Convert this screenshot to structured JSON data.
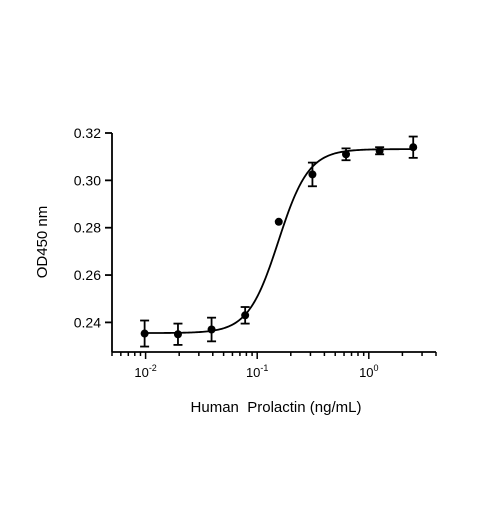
{
  "chart_data": {
    "type": "scatter",
    "title": "",
    "xlabel": "Human  Prolactin (ng/mL)",
    "ylabel": "OD450 nm",
    "x_scale": "log",
    "xlim": [
      0.005,
      4
    ],
    "ylim": [
      0.2275,
      0.32
    ],
    "x_ticks": [
      {
        "base": "10",
        "exp": "-2"
      },
      {
        "base": "10",
        "exp": "-1"
      },
      {
        "base": "10",
        "exp": "0"
      }
    ],
    "y_ticks": [
      "0.24",
      "0.26",
      "0.28",
      "0.30",
      "0.32"
    ],
    "series": [
      {
        "points": [
          {
            "x": 0.0098,
            "y": 0.2353,
            "err": 0.0055
          },
          {
            "x": 0.0195,
            "y": 0.235,
            "err": 0.0045
          },
          {
            "x": 0.039,
            "y": 0.237,
            "err": 0.005
          },
          {
            "x": 0.078,
            "y": 0.243,
            "err": 0.0035
          },
          {
            "x": 0.156,
            "y": 0.2825,
            "err": null
          },
          {
            "x": 0.3125,
            "y": 0.3025,
            "err": 0.005
          },
          {
            "x": 0.625,
            "y": 0.311,
            "err": 0.0025
          },
          {
            "x": 1.25,
            "y": 0.3125,
            "err": 0.0015
          },
          {
            "x": 2.5,
            "y": 0.314,
            "err": 0.0045
          }
        ]
      }
    ],
    "fit_curve": {
      "model": "4PL",
      "bottom": 0.2355,
      "top": 0.3132,
      "ec50": 0.155,
      "hill": 3.2
    },
    "grid": false,
    "legend": "none",
    "colors": {
      "marker": "#000000",
      "line": "#000000",
      "axis": "#000000"
    }
  }
}
